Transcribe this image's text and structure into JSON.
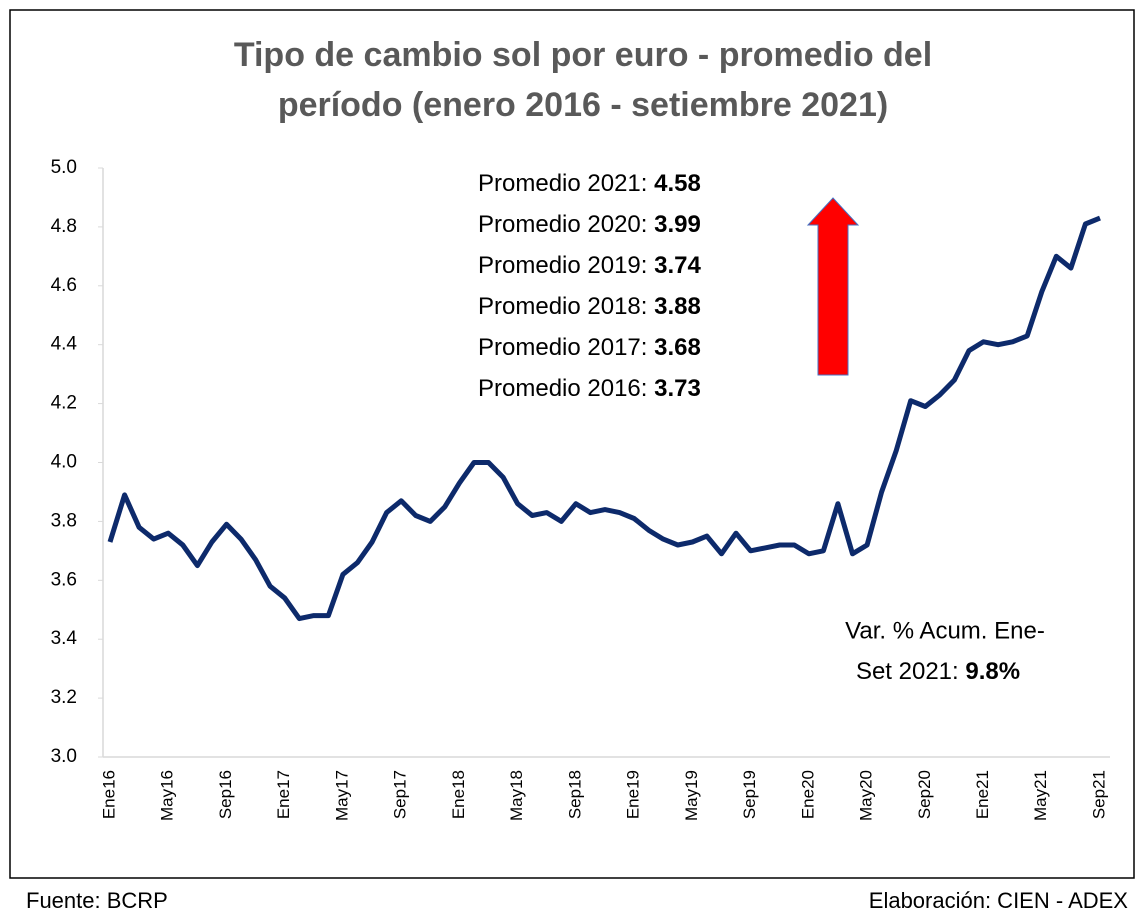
{
  "chart_data": {
    "type": "line",
    "title": "Tipo de cambio sol por euro - promedio del período (enero 2016 - setiembre 2021)",
    "title_lines": [
      "Tipo de cambio sol por euro - promedio del",
      "período (enero 2016 - setiembre 2021)"
    ],
    "categories": [
      "Ene16",
      null,
      null,
      null,
      "May16",
      null,
      null,
      null,
      "Sep16",
      null,
      null,
      null,
      "Ene17",
      null,
      null,
      null,
      "May17",
      null,
      null,
      null,
      "Sep17",
      null,
      null,
      null,
      "Ene18",
      null,
      null,
      null,
      "May18",
      null,
      null,
      null,
      "Sep18",
      null,
      null,
      null,
      "Ene19",
      null,
      null,
      null,
      "May19",
      null,
      null,
      null,
      "Sep19",
      null,
      null,
      null,
      "Ene20",
      null,
      null,
      null,
      "May20",
      null,
      null,
      null,
      "Sep20",
      null,
      null,
      null,
      "Ene21",
      null,
      null,
      null,
      "May21",
      null,
      null,
      null,
      "Sep21"
    ],
    "values": [
      3.73,
      3.89,
      3.78,
      3.74,
      3.76,
      3.72,
      3.65,
      3.73,
      3.79,
      3.74,
      3.67,
      3.58,
      3.54,
      3.47,
      3.48,
      3.48,
      3.62,
      3.66,
      3.73,
      3.83,
      3.87,
      3.82,
      3.8,
      3.85,
      3.93,
      4.0,
      4.0,
      3.95,
      3.86,
      3.82,
      3.83,
      3.8,
      3.86,
      3.83,
      3.84,
      3.83,
      3.81,
      3.77,
      3.74,
      3.72,
      3.73,
      3.75,
      3.69,
      3.76,
      3.7,
      3.71,
      3.72,
      3.72,
      3.69,
      3.7,
      3.86,
      3.69,
      3.72,
      3.9,
      4.04,
      4.21,
      4.19,
      4.23,
      4.28,
      4.38,
      4.41,
      4.4,
      4.41,
      4.43,
      4.58,
      4.7,
      4.66,
      4.81,
      4.83
    ],
    "color": "#0d2a6b",
    "ylim": [
      3,
      5
    ],
    "yticks": [
      {
        "value": 3,
        "label": "3.0"
      },
      {
        "value": 3.2,
        "label": "3.2"
      },
      {
        "value": 3.4,
        "label": "3.4"
      },
      {
        "value": 3.6,
        "label": "3.6"
      },
      {
        "value": 3.8,
        "label": "3.8"
      },
      {
        "value": 4,
        "label": "4.0"
      },
      {
        "value": 4.2,
        "label": "4.2"
      },
      {
        "value": 4.4,
        "label": "4.4"
      },
      {
        "value": 4.6,
        "label": "4.6"
      },
      {
        "value": 4.8,
        "label": "4.8"
      },
      {
        "value": 5,
        "label": "5.0"
      }
    ],
    "grid": false,
    "annotations": [
      {
        "label": "Promedio 2021:",
        "value": 4.58
      },
      {
        "label": "Promedio 2020:",
        "value": 3.99
      },
      {
        "label": "Promedio 2019:",
        "value": 3.74
      },
      {
        "label": "Promedio 2018:",
        "value": 3.88
      },
      {
        "label": "Promedio 2017:",
        "value": 3.68
      },
      {
        "label": "Promedio 2016:",
        "value": 3.73
      }
    ],
    "note": {
      "text_lines": [
        "Var. % Acum. Ene-",
        "Set 2021:"
      ],
      "value": 9.8,
      "value_label": "9.8%"
    },
    "source": "Fuente: BCRP",
    "credit": "Elaboración: CIEN - ADEX"
  }
}
